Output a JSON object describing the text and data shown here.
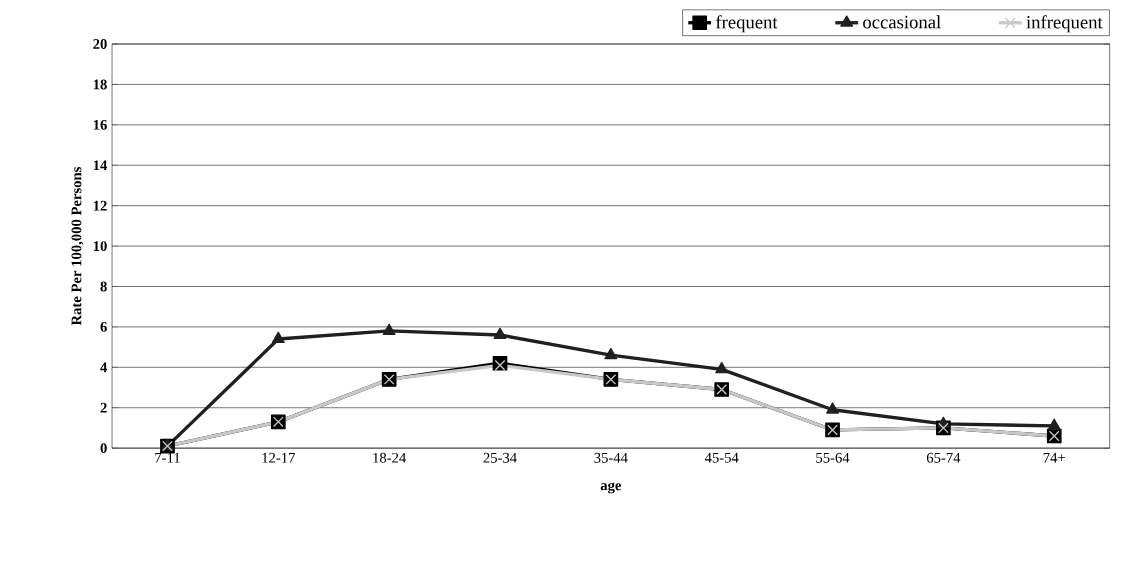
{
  "chart_data": {
    "type": "line",
    "ylabel": "Rate Per 100,000 Persons",
    "xlabel": "age",
    "categories": [
      "7-11",
      "12-17",
      "18-24",
      "25-34",
      "35-44",
      "45-54",
      "55-64",
      "65-74",
      "74+"
    ],
    "series": [
      {
        "name": "frequent",
        "color": "#000000",
        "marker": "square",
        "values": [
          0.1,
          1.3,
          3.4,
          4.2,
          3.4,
          2.9,
          0.9,
          1.0,
          0.6
        ]
      },
      {
        "name": "occasional",
        "color": "#202020",
        "marker": "triangle",
        "values": [
          0.1,
          5.4,
          5.8,
          5.6,
          4.6,
          3.9,
          1.9,
          1.2,
          1.1
        ]
      },
      {
        "name": "infrequent",
        "color": "#c8c8c8",
        "marker": "cross",
        "values": [
          0.1,
          1.3,
          3.4,
          4.1,
          3.4,
          2.9,
          0.9,
          1.0,
          0.6
        ]
      }
    ],
    "ylim": [
      0,
      20
    ],
    "yticks": [
      0,
      2,
      4,
      6,
      8,
      10,
      12,
      14,
      16,
      18,
      20
    ],
    "grid": "y",
    "legend": "top right"
  }
}
